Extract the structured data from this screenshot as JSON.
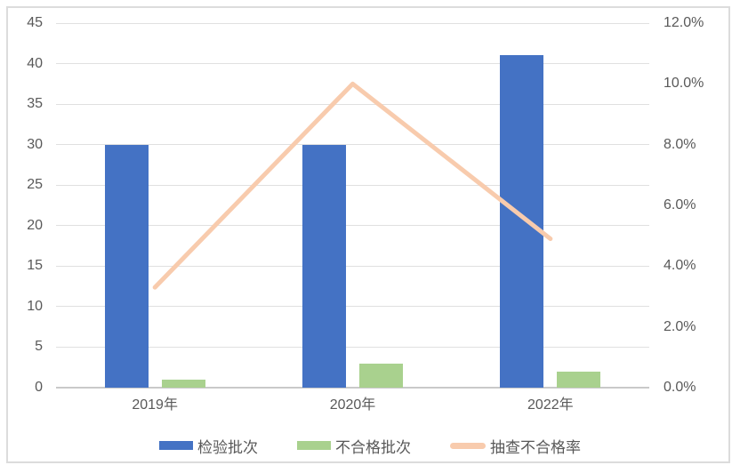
{
  "chart_data": {
    "type": "combo-bar-line",
    "title": "",
    "categories": [
      "2019年",
      "2020年",
      "2022年"
    ],
    "series": [
      {
        "name": "检验批次",
        "type": "bar",
        "axis": "left",
        "color": "#4472C4",
        "values": [
          30,
          30,
          41
        ]
      },
      {
        "name": "不合格批次",
        "type": "bar",
        "axis": "left",
        "color": "#A9D18E",
        "values": [
          1,
          3,
          2
        ]
      },
      {
        "name": "抽查不合格率",
        "type": "line",
        "axis": "right",
        "color": "#F8CBAD",
        "values": [
          3.3,
          10.0,
          4.9
        ]
      }
    ],
    "left_axis": {
      "min": 0,
      "max": 45,
      "step": 5,
      "ticks": [
        "0",
        "5",
        "10",
        "15",
        "20",
        "25",
        "30",
        "35",
        "40",
        "45"
      ]
    },
    "right_axis": {
      "min": 0,
      "max": 12,
      "step": 2,
      "ticks": [
        "0.0%",
        "2.0%",
        "4.0%",
        "6.0%",
        "8.0%",
        "10.0%",
        "12.0%"
      ]
    },
    "grid": true,
    "legend_position": "bottom"
  },
  "colors": {
    "bar_blue": "#4472C4",
    "bar_green": "#A9D18E",
    "line_peach": "#F8CBAD",
    "axis_text": "#595959",
    "gridline": "#e0e0e0",
    "axis_line": "#c9c9c9",
    "frame_border": "#dcdcdc",
    "background": "#ffffff"
  }
}
